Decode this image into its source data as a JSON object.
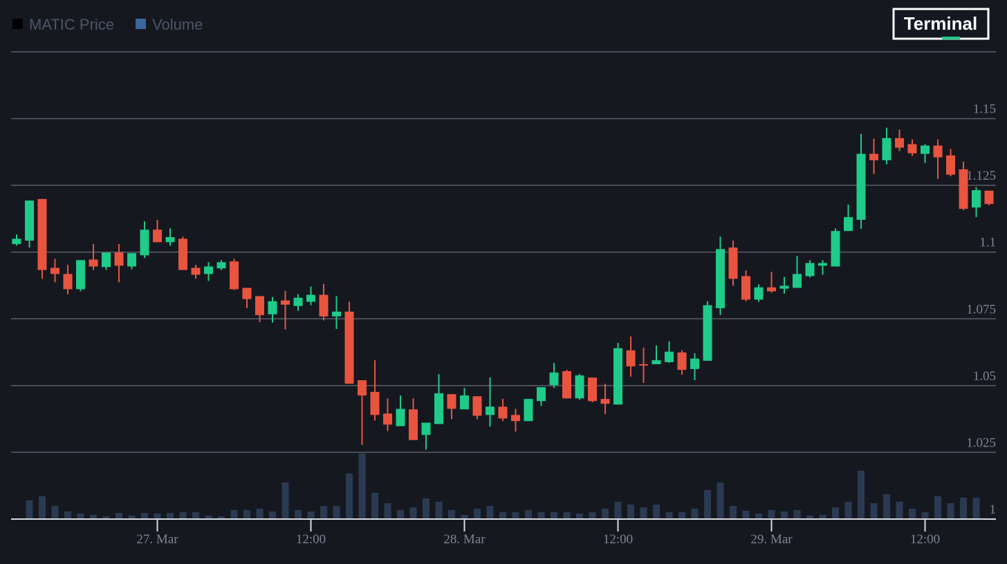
{
  "logo": "Terminal",
  "chart_data": {
    "type": "candlestick",
    "categories": [
      null,
      null,
      null,
      null,
      null,
      null,
      null,
      null,
      null,
      null,
      null,
      "27. Mar",
      null,
      null,
      null,
      null,
      null,
      null,
      null,
      null,
      null,
      null,
      null,
      "12:00",
      null,
      null,
      null,
      null,
      null,
      null,
      null,
      null,
      null,
      null,
      null,
      "28. Mar",
      null,
      null,
      null,
      null,
      null,
      null,
      null,
      null,
      null,
      null,
      null,
      "12:00",
      null,
      null,
      null,
      null,
      null,
      null,
      null,
      null,
      null,
      null,
      null,
      "29. Mar",
      null,
      null,
      null,
      null,
      null,
      null,
      null,
      null,
      null,
      null,
      null,
      "12:00",
      null,
      null,
      null,
      null,
      null
    ],
    "up_color": "#1fcb88",
    "down_color": "#e9543f",
    "series": [
      {
        "name": "MATIC Price",
        "color": "#000000",
        "open": [
          1.103,
          1.1043,
          1.1199,
          1.0941,
          1.0918,
          1.0861,
          1.0972,
          1.0944,
          1.0998,
          1.0946,
          1.0988,
          1.1084,
          1.1037,
          1.105,
          1.0941,
          1.0918,
          1.0939,
          1.0965,
          1.0866,
          1.0835,
          1.0767,
          1.0819,
          1.0798,
          1.0814,
          1.084,
          1.0759,
          1.0777,
          1.052,
          1.0476,
          1.0395,
          1.0348,
          1.0411,
          1.0315,
          1.0356,
          1.0468,
          1.0411,
          1.046,
          1.039,
          1.0421,
          1.039,
          1.0367,
          1.0442,
          1.0502,
          1.0554,
          1.0452,
          1.053,
          1.045,
          1.0429,
          1.0632,
          1.058,
          1.058,
          1.0588,
          1.0624,
          1.0562,
          1.0593,
          1.079,
          1.1017,
          1.091,
          1.0822,
          1.0868,
          1.0863,
          1.0866,
          1.091,
          1.0949,
          1.0946,
          1.1079,
          1.1121,
          1.1368,
          1.1344,
          1.1427,
          1.1404,
          1.1368,
          1.1399,
          1.1362,
          1.131,
          1.1167,
          1.123
        ],
        "high": [
          1.1066,
          1.1193,
          1.1199,
          1.0975,
          1.0952,
          1.097,
          1.103,
          1.0998,
          1.103,
          1.0996,
          1.1115,
          1.1121,
          1.1089,
          1.1058,
          1.0952,
          1.0962,
          1.097,
          1.0975,
          1.0866,
          1.0835,
          1.0832,
          1.0855,
          1.0842,
          1.0871,
          1.0881,
          1.0835,
          1.0814,
          1.052,
          1.0595,
          1.0452,
          1.0463,
          1.0452,
          1.0361,
          1.0543,
          1.0468,
          1.0491,
          1.046,
          1.053,
          1.045,
          1.0413,
          1.045,
          1.0494,
          1.0585,
          1.0559,
          1.0543,
          1.053,
          1.0507,
          1.066,
          1.0684,
          1.0642,
          1.065,
          1.0666,
          1.0632,
          1.0621,
          1.0816,
          1.1058,
          1.1043,
          1.0931,
          1.0879,
          1.0926,
          1.0907,
          1.0985,
          1.097,
          1.097,
          1.1089,
          1.1178,
          1.1443,
          1.1425,
          1.1466,
          1.1459,
          1.1422,
          1.1404,
          1.1422,
          1.1386,
          1.1339,
          1.1243,
          1.123
        ],
        "low": [
          1.1024,
          1.1017,
          1.09,
          1.0887,
          1.0842,
          1.0853,
          1.0933,
          1.0933,
          1.0887,
          1.0936,
          1.0978,
          1.1037,
          1.1024,
          1.0933,
          1.09,
          1.0892,
          1.0933,
          1.0858,
          1.079,
          1.0738,
          1.0736,
          1.071,
          1.078,
          1.0801,
          1.0744,
          1.0712,
          1.0507,
          1.0278,
          1.0369,
          1.033,
          1.0348,
          1.0296,
          1.026,
          1.0356,
          1.0374,
          1.0411,
          1.0374,
          1.0346,
          1.0367,
          1.0328,
          1.0367,
          1.0424,
          1.0491,
          1.0452,
          1.0447,
          1.0437,
          1.0393,
          1.0429,
          1.0533,
          1.051,
          1.058,
          1.0585,
          1.0541,
          1.052,
          1.0593,
          1.0764,
          1.0874,
          1.0816,
          1.0814,
          1.0848,
          1.0845,
          1.0866,
          1.0905,
          1.0915,
          1.0946,
          1.1079,
          1.1087,
          1.1292,
          1.1329,
          1.1378,
          1.136,
          1.1334,
          1.1274,
          1.1284,
          1.1157,
          1.1131,
          1.1175
        ],
        "close": [
          1.105,
          1.1193,
          1.0933,
          1.0918,
          1.0861,
          1.097,
          1.0946,
          1.0998,
          1.0949,
          1.0996,
          1.1084,
          1.1037,
          1.1056,
          1.0933,
          1.0915,
          1.0946,
          1.0962,
          1.0861,
          1.0824,
          1.0764,
          1.0816,
          1.0803,
          1.0829,
          1.084,
          1.0759,
          1.0777,
          1.0507,
          1.0463,
          1.039,
          1.0354,
          1.0413,
          1.0296,
          1.0361,
          1.0471,
          1.0413,
          1.0463,
          1.0387,
          1.0421,
          1.0377,
          1.0367,
          1.045,
          1.0494,
          1.0549,
          1.0452,
          1.0538,
          1.0442,
          1.0432,
          1.064,
          1.0572,
          1.0575,
          1.0595,
          1.0627,
          1.0559,
          1.0601,
          1.0801,
          1.1011,
          1.09,
          1.0822,
          1.0868,
          1.0853,
          1.0874,
          1.0918,
          1.0959,
          1.0959,
          1.1079,
          1.1131,
          1.1368,
          1.1344,
          1.1427,
          1.1391,
          1.137,
          1.1399,
          1.1355,
          1.129,
          1.1162,
          1.1232,
          1.118
        ]
      },
      {
        "name": "Volume",
        "color": "#3b679c",
        "bar_color": "#2a3a52",
        "values": [
          0,
          27,
          33,
          19,
          11,
          8,
          6,
          4,
          9,
          5,
          9,
          8,
          9,
          10,
          10,
          5,
          4,
          13,
          13,
          15,
          11,
          53,
          13,
          11,
          19,
          19,
          66,
          95,
          38,
          23,
          13,
          17,
          30,
          25,
          13,
          6,
          15,
          19,
          10,
          10,
          13,
          10,
          10,
          10,
          8,
          10,
          15,
          25,
          21,
          17,
          21,
          10,
          10,
          15,
          42,
          53,
          19,
          12,
          8,
          13,
          11,
          13,
          5,
          6,
          17,
          25,
          70,
          23,
          36,
          25,
          15,
          10,
          33,
          23,
          31,
          31,
          0
        ]
      }
    ],
    "ylim": [
      1,
      1.175
    ],
    "yticks": [
      1,
      1.025,
      1.05,
      1.075,
      1.1,
      1.125,
      1.15
    ],
    "grid": true
  }
}
